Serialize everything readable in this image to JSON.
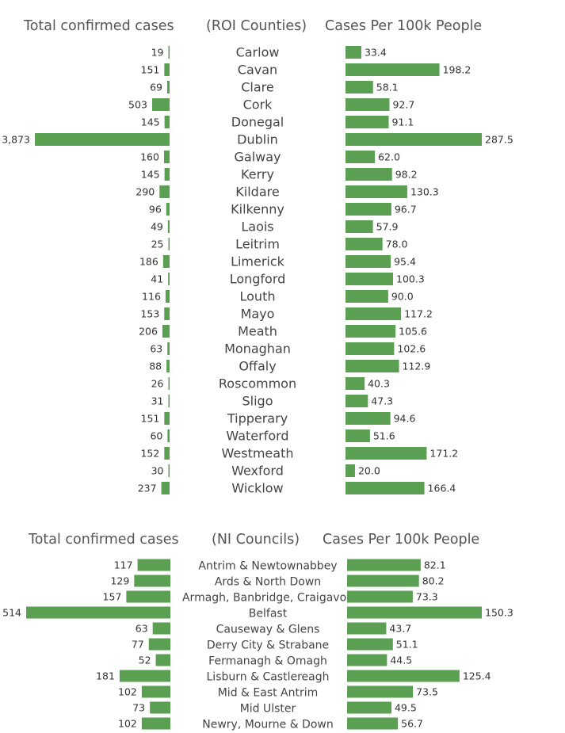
{
  "theme": {
    "bar_color": "#5a9f52"
  },
  "chart_data": [
    {
      "type": "bar",
      "headers": {
        "left": "Total confirmed cases",
        "middle": "(ROI Counties)",
        "right": "Cases Per 100k People"
      },
      "categories": [
        "Carlow",
        "Cavan",
        "Clare",
        "Cork",
        "Donegal",
        "Dublin",
        "Galway",
        "Kerry",
        "Kildare",
        "Kilkenny",
        "Laois",
        "Leitrim",
        "Limerick",
        "Longford",
        "Louth",
        "Mayo",
        "Meath",
        "Monaghan",
        "Offaly",
        "Roscommon",
        "Sligo",
        "Tipperary",
        "Waterford",
        "Westmeath",
        "Wexford",
        "Wicklow"
      ],
      "series": [
        {
          "name": "Total confirmed cases",
          "values": [
            19,
            151,
            69,
            503,
            145,
            3873,
            160,
            145,
            290,
            96,
            49,
            25,
            186,
            41,
            116,
            153,
            206,
            63,
            88,
            26,
            31,
            151,
            60,
            152,
            30,
            237
          ],
          "labels": [
            "19",
            "151",
            "69",
            "503",
            "145",
            "3,873",
            "160",
            "145",
            "290",
            "96",
            "49",
            "25",
            "186",
            "41",
            "116",
            "153",
            "206",
            "63",
            "88",
            "26",
            "31",
            "151",
            "60",
            "152",
            "30",
            "237"
          ]
        },
        {
          "name": "Cases Per 100k People",
          "values": [
            33.4,
            198.2,
            58.1,
            92.7,
            91.1,
            287.5,
            62.0,
            98.2,
            130.3,
            96.7,
            57.9,
            78.0,
            95.4,
            100.3,
            90.0,
            117.2,
            105.6,
            102.6,
            112.9,
            40.3,
            47.3,
            94.6,
            51.6,
            171.2,
            20.0,
            166.4
          ],
          "labels": [
            "33.4",
            "198.2",
            "58.1",
            "92.7",
            "91.1",
            "287.5",
            "62.0",
            "98.2",
            "130.3",
            "96.7",
            "57.9",
            "78.0",
            "95.4",
            "100.3",
            "90.0",
            "117.2",
            "105.6",
            "102.6",
            "112.9",
            "40.3",
            "47.3",
            "94.6",
            "51.6",
            "171.2",
            "20.0",
            "166.4"
          ]
        }
      ]
    },
    {
      "type": "bar",
      "headers": {
        "left": "Total confirmed cases",
        "middle": "(NI Councils)",
        "right": "Cases Per 100k People"
      },
      "categories": [
        "Antrim & Newtownabbey",
        "Ards & North Down",
        "Armagh, Banbridge, Craigavon",
        "Belfast",
        "Causeway & Glens",
        "Derry City & Strabane",
        "Fermanagh & Omagh",
        "Lisburn & Castlereagh",
        "Mid & East Antrim",
        "Mid Ulster",
        "Newry, Mourne & Down"
      ],
      "series": [
        {
          "name": "Total confirmed cases",
          "values": [
            117,
            129,
            157,
            514,
            63,
            77,
            52,
            181,
            102,
            73,
            102
          ],
          "labels": [
            "117",
            "129",
            "157",
            "514",
            "63",
            "77",
            "52",
            "181",
            "102",
            "73",
            "102"
          ]
        },
        {
          "name": "Cases Per 100k People",
          "values": [
            82.1,
            80.2,
            73.3,
            150.3,
            43.7,
            51.1,
            44.5,
            125.4,
            73.5,
            49.5,
            56.7
          ],
          "labels": [
            "82.1",
            "80.2",
            "73.3",
            "150.3",
            "43.7",
            "51.1",
            "44.5",
            "125.4",
            "73.5",
            "49.5",
            "56.7"
          ]
        }
      ]
    }
  ]
}
